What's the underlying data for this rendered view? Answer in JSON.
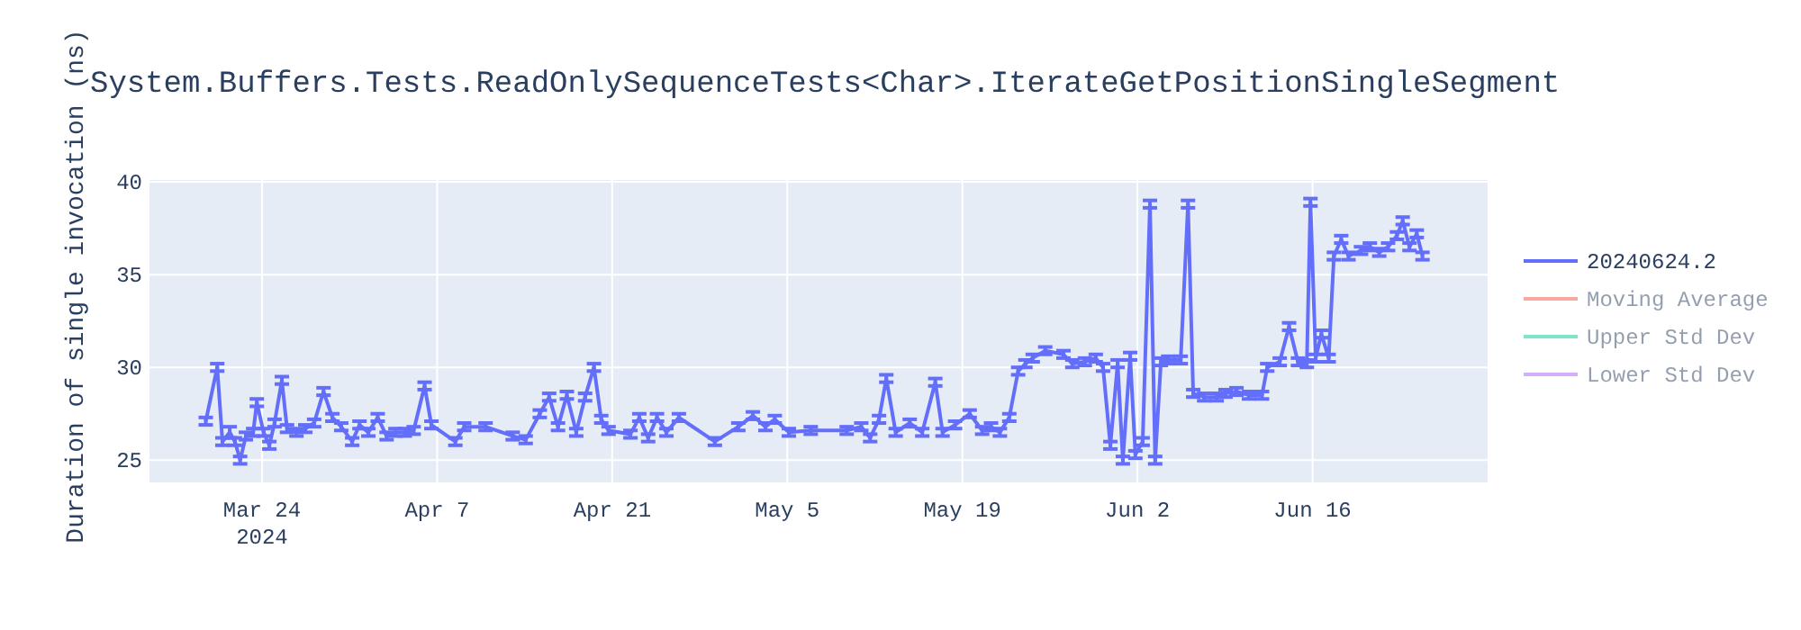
{
  "chart_data": {
    "type": "line",
    "title": "System.Buffers.Tests.ReadOnlySequenceTests<Char>.IterateGetPositionSingleSegment",
    "ylabel": "Duration of single invocation (ns)",
    "xlim": [
      "2024-03-15",
      "2024-06-30"
    ],
    "ylim": [
      23.8,
      40.1
    ],
    "xticks": [
      {
        "value": "2024-03-24",
        "label": "Mar 24\n2024"
      },
      {
        "value": "2024-04-07",
        "label": "Apr 7"
      },
      {
        "value": "2024-04-21",
        "label": "Apr 21"
      },
      {
        "value": "2024-05-05",
        "label": "May 5"
      },
      {
        "value": "2024-05-19",
        "label": "May 19"
      },
      {
        "value": "2024-06-02",
        "label": "Jun 2"
      },
      {
        "value": "2024-06-16",
        "label": "Jun 16"
      }
    ],
    "yticks": [
      25,
      30,
      35,
      40
    ],
    "grid": true,
    "legend": "top right",
    "line_style": "solid",
    "series": [
      {
        "name": "20240624.2",
        "color": "#636efa",
        "x": [
          "2024-03-19T12:00",
          "2024-03-20T10:00",
          "2024-03-20T20:00",
          "2024-03-21T10:00",
          "2024-03-21T20:00",
          "2024-03-22T06:00",
          "2024-03-22T17:00",
          "2024-03-23T07:00",
          "2024-03-23T14:00",
          "2024-03-24T03:00",
          "2024-03-24T14:00",
          "2024-03-25T00:00",
          "2024-03-25T14:00",
          "2024-03-26T00:00",
          "2024-03-26T18:00",
          "2024-03-27T11:00",
          "2024-03-28T04:00",
          "2024-03-28T22:00",
          "2024-03-29T15:00",
          "2024-03-30T08:00",
          "2024-03-31T05:00",
          "2024-03-31T19:00",
          "2024-04-01T12:00",
          "2024-04-02T06:00",
          "2024-04-02T23:00",
          "2024-04-03T16:00",
          "2024-04-04T10:00",
          "2024-04-05T03:00",
          "2024-04-06T00:00",
          "2024-04-06T13:00",
          "2024-04-08T11:00",
          "2024-04-09T04:00",
          "2024-04-10T21:00",
          "2024-04-13T01:00",
          "2024-04-14T02:00",
          "2024-04-15T05:00",
          "2024-04-15T23:00",
          "2024-04-16T16:00",
          "2024-04-17T09:00",
          "2024-04-18T03:00",
          "2024-04-18T20:00",
          "2024-04-19T13:00",
          "2024-04-20T03:00",
          "2024-04-20T17:00",
          "2024-04-22T11:00",
          "2024-04-23T04:00",
          "2024-04-23T21:00",
          "2024-04-24T14:00",
          "2024-04-25T08:00",
          "2024-04-26T08:00",
          "2024-04-29T05:00",
          "2024-05-01T02:00",
          "2024-05-02T06:00",
          "2024-05-03T06:00",
          "2024-05-04T00:00",
          "2024-05-05T03:00",
          "2024-05-06T21:00",
          "2024-05-09T18:00",
          "2024-05-10T22:00",
          "2024-05-11T15:00",
          "2024-05-12T08:00",
          "2024-05-12T22:00",
          "2024-05-13T16:00",
          "2024-05-14T19:00",
          "2024-05-15T19:00",
          "2024-05-16T20:00",
          "2024-05-17T10:00",
          "2024-05-18T10:00",
          "2024-05-19T14:00",
          "2024-05-20T14:00",
          "2024-05-21T07:00",
          "2024-05-22T00:00",
          "2024-05-22T18:00",
          "2024-05-23T11:00",
          "2024-05-24T01:00",
          "2024-05-24T15:00",
          "2024-05-25T15:00",
          "2024-05-27T02:00",
          "2024-05-27T19:00",
          "2024-05-28T19:00",
          "2024-05-29T16:00",
          "2024-05-30T06:00",
          "2024-05-30T20:00",
          "2024-05-31T10:00",
          "2024-05-31T20:00",
          "2024-06-01T10:00",
          "2024-06-01T20:00",
          "2024-06-02T10:00",
          "2024-06-03T00:00",
          "2024-06-03T10:00",
          "2024-06-03T21:00",
          "2024-06-04T11:00",
          "2024-06-05T11:00",
          "2024-06-06T01:00",
          "2024-06-06T11:00",
          "2024-06-07T08:00",
          "2024-06-08T08:00",
          "2024-06-09T01:00",
          "2024-06-09T22:00",
          "2024-06-10T22:00",
          "2024-06-11T23:00",
          "2024-06-12T09:00",
          "2024-06-13T09:00",
          "2024-06-14T03:00",
          "2024-06-14T20:00",
          "2024-06-15T13:00",
          "2024-06-15T20:00",
          "2024-06-16T06:00",
          "2024-06-16T17:00",
          "2024-06-17T07:00",
          "2024-06-17T17:00",
          "2024-06-18T07:00",
          "2024-06-18T21:00",
          "2024-06-19T21:00",
          "2024-06-20T14:00",
          "2024-06-21T08:00",
          "2024-06-22T01:00",
          "2024-06-22T18:00",
          "2024-06-23T05:00",
          "2024-06-23T18:00",
          "2024-06-24T08:00",
          "2024-06-24T19:00"
        ],
        "values": [
          27.1,
          30.0,
          26.0,
          26.5,
          26.0,
          25.0,
          26.3,
          26.5,
          28.1,
          26.5,
          25.8,
          27.0,
          29.3,
          26.7,
          26.5,
          26.7,
          27.0,
          28.7,
          27.3,
          26.8,
          26.0,
          26.9,
          26.5,
          27.3,
          26.3,
          26.5,
          26.5,
          26.6,
          29.0,
          26.9,
          26.0,
          26.8,
          26.8,
          26.3,
          26.1,
          27.5,
          28.4,
          26.8,
          28.5,
          26.5,
          28.4,
          30.0,
          27.2,
          26.6,
          26.4,
          27.3,
          26.2,
          27.3,
          26.5,
          27.3,
          26.0,
          26.8,
          27.4,
          26.8,
          27.2,
          26.5,
          26.6,
          26.6,
          26.8,
          26.2,
          27.2,
          29.4,
          26.5,
          27.0,
          26.5,
          29.2,
          26.5,
          26.9,
          27.5,
          26.6,
          26.8,
          26.5,
          27.3,
          29.8,
          30.2,
          30.5,
          30.9,
          30.7,
          30.2,
          30.3,
          30.5,
          30.0,
          25.8,
          30.2,
          25.0,
          30.6,
          25.3,
          26.0,
          38.8,
          25.0,
          30.3,
          30.4,
          30.4,
          38.8,
          28.6,
          28.4,
          28.4,
          28.6,
          28.7,
          28.5,
          28.5,
          30.0,
          30.3,
          32.2,
          30.3,
          30.2,
          38.9,
          30.5,
          31.8,
          30.5,
          36.0,
          36.9,
          36.0,
          36.3,
          36.5,
          36.2,
          36.5,
          37.1,
          37.9,
          36.5,
          37.2,
          36.0
        ],
        "errors": [
          0.2,
          0.2,
          0.2,
          0.3,
          0.2,
          0.2,
          0.2,
          0.2,
          0.2,
          0.2,
          0.2,
          0.2,
          0.2,
          0.2,
          0.2,
          0.2,
          0.2,
          0.2,
          0.2,
          0.2,
          0.2,
          0.2,
          0.2,
          0.2,
          0.2,
          0.2,
          0.2,
          0.2,
          0.2,
          0.2,
          0.2,
          0.2,
          0.2,
          0.2,
          0.2,
          0.2,
          0.2,
          0.2,
          0.2,
          0.2,
          0.2,
          0.2,
          0.2,
          0.2,
          0.2,
          0.2,
          0.2,
          0.2,
          0.2,
          0.2,
          0.2,
          0.2,
          0.2,
          0.2,
          0.2,
          0.2,
          0.2,
          0.2,
          0.2,
          0.2,
          0.2,
          0.2,
          0.2,
          0.2,
          0.2,
          0.2,
          0.2,
          0.2,
          0.2,
          0.2,
          0.2,
          0.2,
          0.2,
          0.2,
          0.2,
          0.2,
          0.2,
          0.2,
          0.2,
          0.2,
          0.2,
          0.2,
          0.2,
          0.2,
          0.2,
          0.2,
          0.2,
          0.2,
          0.2,
          0.2,
          0.2,
          0.2,
          0.2,
          0.2,
          0.2,
          0.2,
          0.2,
          0.2,
          0.2,
          0.2,
          0.2,
          0.2,
          0.2,
          0.2,
          0.2,
          0.2,
          0.2,
          0.2,
          0.2,
          0.2,
          0.2,
          0.2,
          0.2,
          0.2,
          0.2,
          0.2,
          0.2,
          0.2,
          0.2,
          0.2,
          0.2,
          0.2
        ]
      },
      {
        "name": "Moving Average",
        "color": "#ef553b"
      },
      {
        "name": "Upper Std Dev",
        "color": "#00cc96"
      },
      {
        "name": "Lower Std Dev",
        "color": "#ab63fa"
      }
    ]
  }
}
